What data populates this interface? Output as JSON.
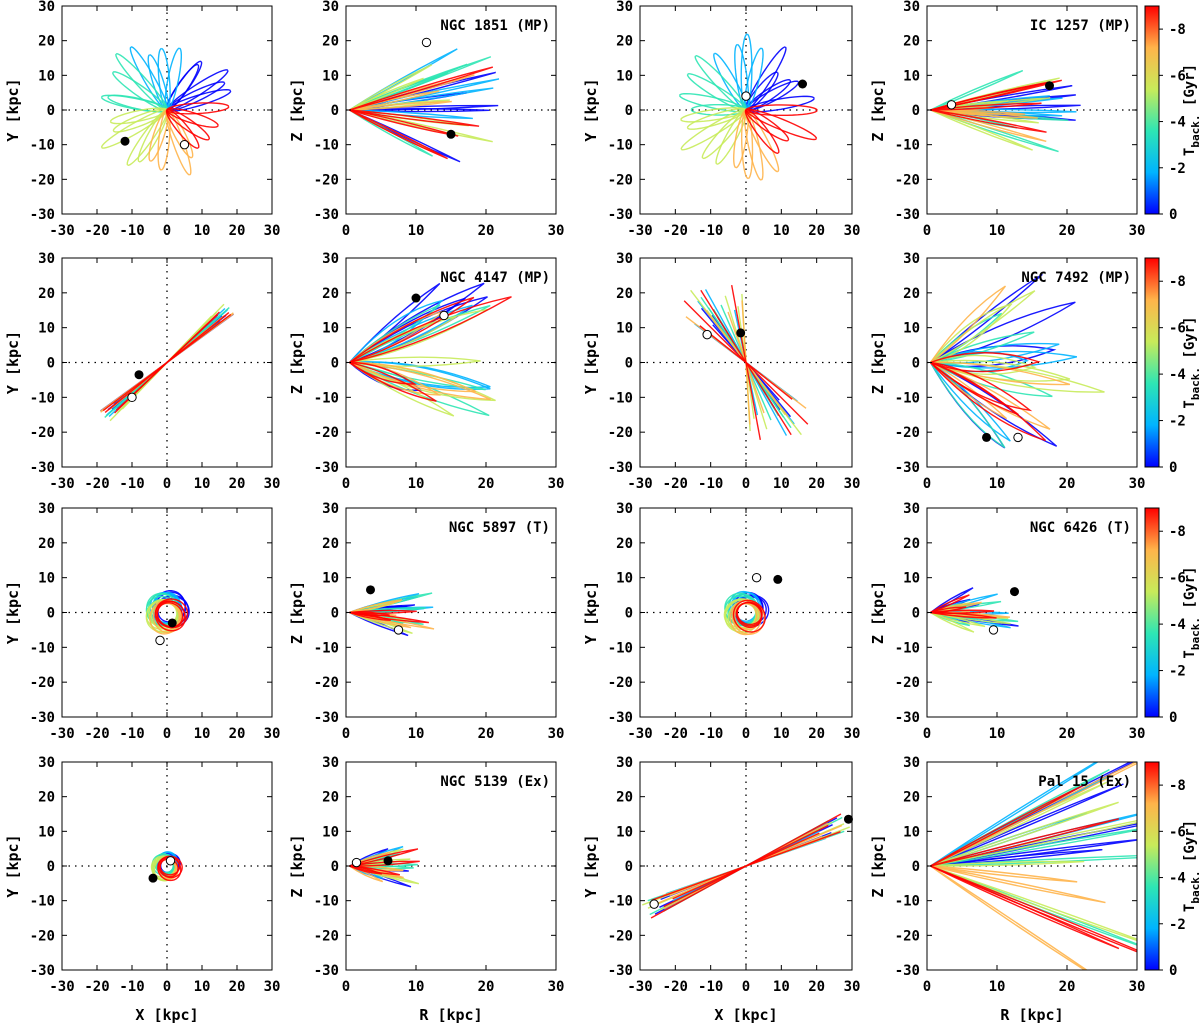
{
  "figure": {
    "row_kinds": [
      "MP",
      "MP",
      "T",
      "Ex"
    ],
    "xy_xlabel": "X [kpc]",
    "xy_ylabel": "Y [kpc]",
    "rz_xlabel": "R [kpc]",
    "rz_ylabel": "Z [kpc]",
    "colorbar": {
      "label": "T",
      "label_sub": "back.",
      "label_unit": "[Gyr]",
      "ticks": [
        "0",
        "-2",
        "-4",
        "-6",
        "-8"
      ],
      "range": [
        0,
        -9
      ],
      "colors": [
        "#0000ff",
        "#00b4ff",
        "#2ee6b4",
        "#c8eb5a",
        "#ffb44a",
        "#ff0000"
      ]
    }
  },
  "chart_data": [
    {
      "type": "scatter",
      "title": "",
      "xlabel": "",
      "ylabel": "Y [kpc]",
      "xlim": [
        -30,
        30
      ],
      "ylim": [
        -30,
        30
      ],
      "xticks": [
        "-30",
        "-20",
        "-10",
        "0",
        "10",
        "20",
        "30"
      ],
      "yticks": [
        "-30",
        "-20",
        "-10",
        "0",
        "10",
        "20",
        "30"
      ],
      "start_point": [
        -12,
        -9
      ],
      "end_point": [
        5,
        -10
      ]
    },
    {
      "type": "scatter",
      "title": "NGC 1851 (MP)",
      "xlabel": "",
      "ylabel": "Z [kpc]",
      "xlim": [
        0,
        30
      ],
      "ylim": [
        -30,
        30
      ],
      "xticks": [
        "0",
        "10",
        "20",
        "30"
      ],
      "yticks": [
        "-30",
        "-20",
        "-10",
        "0",
        "10",
        "20",
        "30"
      ],
      "start_point": [
        15,
        -7
      ],
      "end_point": [
        11.5,
        19.5
      ]
    },
    {
      "type": "scatter",
      "title": "",
      "xlabel": "",
      "ylabel": "Y [kpc]",
      "xlim": [
        -30,
        30
      ],
      "ylim": [
        -30,
        30
      ],
      "xticks": [
        "-30",
        "-20",
        "-10",
        "0",
        "10",
        "20",
        "30"
      ],
      "yticks": [
        "-30",
        "-20",
        "-10",
        "0",
        "10",
        "20",
        "30"
      ],
      "start_point": [
        16,
        7.5
      ],
      "end_point": [
        0,
        4
      ]
    },
    {
      "type": "scatter",
      "title": "IC 1257 (MP)",
      "xlabel": "",
      "ylabel": "Z [kpc]",
      "xlim": [
        0,
        30
      ],
      "ylim": [
        -30,
        30
      ],
      "xticks": [
        "0",
        "10",
        "20",
        "30"
      ],
      "yticks": [
        "-30",
        "-20",
        "-10",
        "0",
        "10",
        "20",
        "30"
      ],
      "start_point": [
        17.5,
        7
      ],
      "end_point": [
        3.5,
        1.5
      ]
    },
    {
      "type": "scatter",
      "title": "",
      "xlabel": "",
      "ylabel": "Y [kpc]",
      "xlim": [
        -30,
        30
      ],
      "ylim": [
        -30,
        30
      ],
      "xticks": [
        "-30",
        "-20",
        "-10",
        "0",
        "10",
        "20",
        "30"
      ],
      "yticks": [
        "-30",
        "-20",
        "-10",
        "0",
        "10",
        "20",
        "30"
      ],
      "start_point": [
        -8,
        -3.5
      ],
      "end_point": [
        -10,
        -10
      ]
    },
    {
      "type": "scatter",
      "title": "NGC 4147 (MP)",
      "xlabel": "",
      "ylabel": "Z [kpc]",
      "xlim": [
        0,
        30
      ],
      "ylim": [
        -30,
        30
      ],
      "xticks": [
        "0",
        "10",
        "20",
        "30"
      ],
      "yticks": [
        "-30",
        "-20",
        "-10",
        "0",
        "10",
        "20",
        "30"
      ],
      "start_point": [
        10,
        18.5
      ],
      "end_point": [
        14,
        13.5
      ]
    },
    {
      "type": "scatter",
      "title": "",
      "xlabel": "",
      "ylabel": "Y [kpc]",
      "xlim": [
        -30,
        30
      ],
      "ylim": [
        -30,
        30
      ],
      "xticks": [
        "-30",
        "-20",
        "-10",
        "0",
        "10",
        "20",
        "30"
      ],
      "yticks": [
        "-30",
        "-20",
        "-10",
        "0",
        "10",
        "20",
        "30"
      ],
      "start_point": [
        -1.5,
        8.5
      ],
      "end_point": [
        -11,
        8
      ]
    },
    {
      "type": "scatter",
      "title": "NGC 7492 (MP)",
      "xlabel": "",
      "ylabel": "Z [kpc]",
      "xlim": [
        0,
        30
      ],
      "ylim": [
        -30,
        30
      ],
      "xticks": [
        "0",
        "10",
        "20",
        "30"
      ],
      "yticks": [
        "-30",
        "-20",
        "-10",
        "0",
        "10",
        "20",
        "30"
      ],
      "start_point": [
        8.5,
        -21.5
      ],
      "end_point": [
        13,
        -21.5
      ]
    },
    {
      "type": "scatter",
      "title": "",
      "xlabel": "",
      "ylabel": "Y [kpc]",
      "xlim": [
        -30,
        30
      ],
      "ylim": [
        -30,
        30
      ],
      "xticks": [
        "-30",
        "-20",
        "-10",
        "0",
        "10",
        "20",
        "30"
      ],
      "yticks": [
        "-30",
        "-20",
        "-10",
        "0",
        "10",
        "20",
        "30"
      ],
      "start_point": [
        1.5,
        -3
      ],
      "end_point": [
        -2,
        -8
      ]
    },
    {
      "type": "scatter",
      "title": "NGC 5897 (T)",
      "xlabel": "",
      "ylabel": "Z [kpc]",
      "xlim": [
        0,
        30
      ],
      "ylim": [
        -30,
        30
      ],
      "xticks": [
        "0",
        "10",
        "20",
        "30"
      ],
      "yticks": [
        "-30",
        "-20",
        "-10",
        "0",
        "10",
        "20",
        "30"
      ],
      "start_point": [
        3.5,
        6.5
      ],
      "end_point": [
        7.5,
        -5
      ]
    },
    {
      "type": "scatter",
      "title": "",
      "xlabel": "",
      "ylabel": "Y [kpc]",
      "xlim": [
        -30,
        30
      ],
      "ylim": [
        -30,
        30
      ],
      "xticks": [
        "-30",
        "-20",
        "-10",
        "0",
        "10",
        "20",
        "30"
      ],
      "yticks": [
        "-30",
        "-20",
        "-10",
        "0",
        "10",
        "20",
        "30"
      ],
      "start_point": [
        9,
        9.5
      ],
      "end_point": [
        3,
        10
      ]
    },
    {
      "type": "scatter",
      "title": "NGC 6426 (T)",
      "xlabel": "",
      "ylabel": "Z [kpc]",
      "xlim": [
        0,
        30
      ],
      "ylim": [
        -30,
        30
      ],
      "xticks": [
        "0",
        "10",
        "20",
        "30"
      ],
      "yticks": [
        "-30",
        "-20",
        "-10",
        "0",
        "10",
        "20",
        "30"
      ],
      "start_point": [
        12.5,
        6
      ],
      "end_point": [
        9.5,
        -5
      ]
    },
    {
      "type": "scatter",
      "title": "",
      "xlabel": "X [kpc]",
      "ylabel": "Y [kpc]",
      "xlim": [
        -30,
        30
      ],
      "ylim": [
        -30,
        30
      ],
      "xticks": [
        "-30",
        "-20",
        "-10",
        "0",
        "10",
        "20",
        "30"
      ],
      "yticks": [
        "-30",
        "-20",
        "-10",
        "0",
        "10",
        "20",
        "30"
      ],
      "start_point": [
        -4,
        -3.5
      ],
      "end_point": [
        1,
        1.5
      ]
    },
    {
      "type": "scatter",
      "title": "NGC 5139 (Ex)",
      "xlabel": "R [kpc]",
      "ylabel": "Z [kpc]",
      "xlim": [
        0,
        30
      ],
      "ylim": [
        -30,
        30
      ],
      "xticks": [
        "0",
        "10",
        "20",
        "30"
      ],
      "yticks": [
        "-30",
        "-20",
        "-10",
        "0",
        "10",
        "20",
        "30"
      ],
      "start_point": [
        6,
        1.5
      ],
      "end_point": [
        1.5,
        1
      ]
    },
    {
      "type": "scatter",
      "title": "",
      "xlabel": "X [kpc]",
      "ylabel": "Y [kpc]",
      "xlim": [
        -30,
        30
      ],
      "ylim": [
        -30,
        30
      ],
      "xticks": [
        "-30",
        "-20",
        "-10",
        "0",
        "10",
        "20",
        "30"
      ],
      "yticks": [
        "-30",
        "-20",
        "-10",
        "0",
        "10",
        "20",
        "30"
      ],
      "start_point": [
        29,
        13.5
      ],
      "end_point": [
        -26,
        -11
      ]
    },
    {
      "type": "scatter",
      "title": "Pal 15 (Ex)",
      "xlabel": "R [kpc]",
      "ylabel": "Z [kpc]",
      "xlim": [
        0,
        30
      ],
      "ylim": [
        -30,
        30
      ],
      "xticks": [
        "0",
        "10",
        "20",
        "30"
      ],
      "yticks": [
        "-30",
        "-20",
        "-10",
        "0",
        "10",
        "20",
        "30"
      ],
      "start_point": null,
      "end_point": null
    }
  ]
}
